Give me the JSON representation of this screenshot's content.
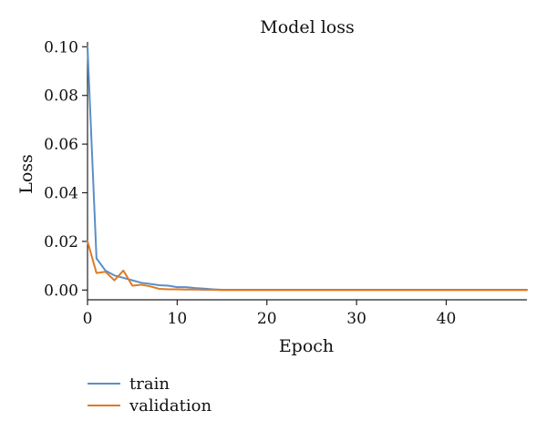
{
  "chart_data": {
    "type": "line",
    "title": "Model loss",
    "xlabel": "Epoch",
    "ylabel": "Loss",
    "xlim": [
      0,
      49
    ],
    "ylim": [
      -0.004,
      0.102
    ],
    "xticks": [
      0,
      10,
      20,
      30,
      40
    ],
    "xtick_labels": [
      "0",
      "10",
      "20",
      "30",
      "40"
    ],
    "yticks": [
      0,
      0.02,
      0.04,
      0.06,
      0.08,
      0.1
    ],
    "ytick_labels": [
      "0.00",
      "0.02",
      "0.04",
      "0.06",
      "0.08",
      "0.10"
    ],
    "grid": false,
    "legend_position": "below",
    "x": [
      0,
      1,
      2,
      3,
      4,
      5,
      6,
      7,
      8,
      9,
      10,
      11,
      12,
      13,
      14,
      15,
      16,
      17,
      18,
      19,
      20,
      21,
      22,
      23,
      24,
      25,
      26,
      27,
      28,
      29,
      30,
      31,
      32,
      33,
      34,
      35,
      36,
      37,
      38,
      39,
      40,
      41,
      42,
      43,
      44,
      45,
      46,
      47,
      48,
      49
    ],
    "series": [
      {
        "name": "train",
        "color": "#5b8fc7",
        "values": [
          0.1,
          0.013,
          0.008,
          0.006,
          0.005,
          0.004,
          0.003,
          0.0025,
          0.002,
          0.0018,
          0.0012,
          0.0012,
          0.0008,
          0.0006,
          0.0003,
          0.0001,
          0.0001,
          0.0001,
          0.0001,
          0.0001,
          0.0001,
          0.0001,
          0.0001,
          0.0001,
          0.0001,
          0.0001,
          0.0001,
          0.0001,
          0.0001,
          0.0001,
          0.0001,
          0.0001,
          0.0001,
          0.0001,
          0.0001,
          0.0001,
          0.0001,
          0.0001,
          0.0001,
          0.0001,
          0.0001,
          0.0001,
          0.0001,
          0.0001,
          0.0001,
          0.0001,
          0.0001,
          0.0001,
          0.0001,
          0.0001
        ]
      },
      {
        "name": "validation",
        "color": "#e07b22",
        "values": [
          0.02,
          0.007,
          0.0075,
          0.004,
          0.008,
          0.0018,
          0.0022,
          0.0015,
          0.0005,
          0.0003,
          0.0003,
          0.0002,
          0.0002,
          0.0001,
          0.0001,
          0.0,
          0.0,
          0.0,
          0.0,
          0.0,
          0.0,
          0.0,
          0.0,
          0.0,
          0.0,
          0.0,
          0.0,
          0.0,
          0.0,
          0.0,
          0.0,
          0.0,
          0.0,
          0.0,
          0.0,
          0.0,
          0.0,
          0.0,
          0.0,
          0.0,
          0.0,
          0.0,
          0.0,
          0.0,
          0.0,
          0.0,
          0.0,
          0.0,
          0.0,
          0.0
        ]
      }
    ]
  }
}
